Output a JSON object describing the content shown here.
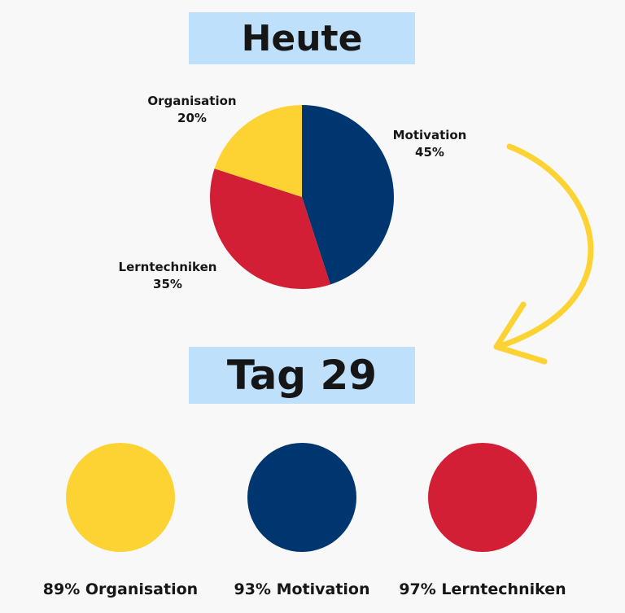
{
  "colors": {
    "yellow": "#fdd233",
    "blue": "#003670",
    "red": "#d31f35",
    "title_bg": "#bfe0fb",
    "arrow": "#fdd233"
  },
  "chart_data": [
    {
      "type": "pie",
      "title": "Heute",
      "slices": [
        {
          "label": "Motivation",
          "value": 45,
          "value_text": "45%",
          "color": "#003670"
        },
        {
          "label": "Lerntechniken",
          "value": 35,
          "value_text": "35%",
          "color": "#d31f35"
        },
        {
          "label": "Organisation",
          "value": 20,
          "value_text": "20%",
          "color": "#fdd233"
        }
      ]
    },
    {
      "type": "bar",
      "title": "Tag 29",
      "items": [
        {
          "label": "89% Organisation",
          "value": 89,
          "color": "#fdd233"
        },
        {
          "label": "93% Motivation",
          "value": 93,
          "color": "#003670"
        },
        {
          "label": "97% Lerntechniken",
          "value": 97,
          "color": "#d31f35"
        }
      ]
    }
  ]
}
